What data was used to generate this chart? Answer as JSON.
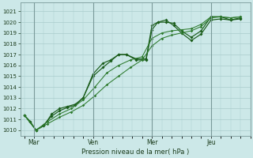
{
  "bg_color": "#cce8e8",
  "grid_color": "#aacccc",
  "line_color_dark": "#1a5c1a",
  "line_color_med": "#2d7a2d",
  "ylabel": "Pression niveau de la mer( hPa )",
  "ylim": [
    1009.5,
    1021.8
  ],
  "yticks": [
    1010,
    1011,
    1012,
    1013,
    1014,
    1015,
    1016,
    1017,
    1018,
    1019,
    1020,
    1021
  ],
  "xtick_labels": [
    "Mar",
    "Ven",
    "Mer",
    "Jeu"
  ],
  "xtick_positions": [
    0.5,
    3.5,
    6.5,
    9.5
  ],
  "vline_positions": [
    0.5,
    3.5,
    6.5,
    9.5
  ],
  "xlim": [
    -0.2,
    11.5
  ],
  "series1_x": [
    0.0,
    0.3,
    0.6,
    1.0,
    1.4,
    1.8,
    2.2,
    2.6,
    3.0,
    3.5,
    4.0,
    4.4,
    4.8,
    5.2,
    5.7,
    6.2,
    6.5,
    6.8,
    7.2,
    7.6,
    8.0,
    8.5,
    9.0,
    9.5,
    10.0,
    10.5,
    11.0
  ],
  "series1_y": [
    1011.4,
    1010.8,
    1010.0,
    1010.4,
    1011.5,
    1012.0,
    1012.2,
    1012.4,
    1013.0,
    1015.2,
    1016.2,
    1016.5,
    1017.0,
    1017.0,
    1016.6,
    1016.6,
    1019.7,
    1020.0,
    1020.0,
    1019.9,
    1019.2,
    1018.6,
    1019.2,
    1020.5,
    1020.5,
    1020.2,
    1020.3
  ],
  "series2_x": [
    0.0,
    0.3,
    0.6,
    1.0,
    1.4,
    1.8,
    2.2,
    2.6,
    3.0,
    3.5,
    4.0,
    4.4,
    4.8,
    5.2,
    5.7,
    6.2,
    6.5,
    6.8,
    7.2,
    7.6,
    8.0,
    8.5,
    9.0,
    9.5,
    10.0,
    10.5,
    11.0
  ],
  "series2_y": [
    1011.4,
    1010.8,
    1010.0,
    1010.5,
    1011.3,
    1011.8,
    1012.1,
    1012.3,
    1013.0,
    1015.0,
    1015.8,
    1016.4,
    1017.0,
    1017.0,
    1016.5,
    1016.5,
    1019.3,
    1020.0,
    1020.2,
    1019.7,
    1019.0,
    1018.3,
    1018.9,
    1020.2,
    1020.3,
    1020.2,
    1020.4
  ],
  "series3_x": [
    0.0,
    0.6,
    1.2,
    1.8,
    2.4,
    3.0,
    3.6,
    4.2,
    4.8,
    5.4,
    6.0,
    6.5,
    7.0,
    7.5,
    8.0,
    8.5,
    9.0,
    9.5,
    10.0,
    10.5,
    11.0
  ],
  "series3_y": [
    1011.4,
    1010.0,
    1010.8,
    1011.5,
    1012.0,
    1012.8,
    1014.0,
    1015.3,
    1016.0,
    1016.5,
    1016.8,
    1018.5,
    1019.0,
    1019.2,
    1019.3,
    1019.4,
    1019.8,
    1020.5,
    1020.5,
    1020.4,
    1020.5
  ],
  "series4_x": [
    0.0,
    0.6,
    1.2,
    1.8,
    2.4,
    3.0,
    3.6,
    4.2,
    4.8,
    5.4,
    6.0,
    6.5,
    7.0,
    7.5,
    8.0,
    8.5,
    9.0,
    9.5,
    10.0,
    10.5,
    11.0
  ],
  "series4_y": [
    1011.4,
    1010.0,
    1010.6,
    1011.2,
    1011.7,
    1012.3,
    1013.2,
    1014.2,
    1015.0,
    1015.8,
    1016.5,
    1017.8,
    1018.5,
    1018.8,
    1019.0,
    1019.2,
    1019.6,
    1020.4,
    1020.5,
    1020.4,
    1020.5
  ]
}
